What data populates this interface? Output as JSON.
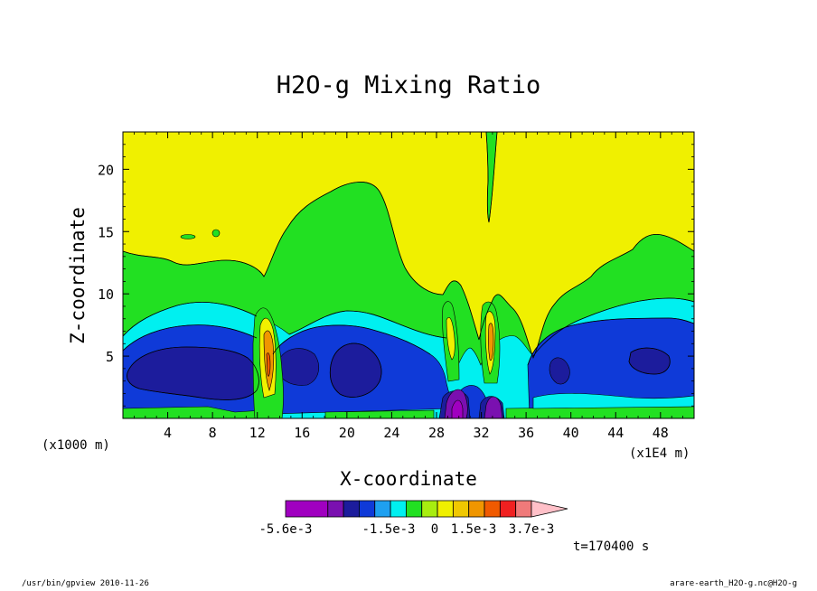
{
  "chart_data": {
    "type": "heatmap",
    "title": "H2O-g Mixing Ratio",
    "xlabel": "X-coordinate",
    "ylabel": "Z-coordinate",
    "x_unit_left": "(x1000 m)",
    "x_unit_right": "(x1E4 m)",
    "x_ticks": [
      "4",
      "8",
      "12",
      "16",
      "20",
      "24",
      "28",
      "32",
      "36",
      "40",
      "44",
      "48"
    ],
    "y_ticks": [
      "5",
      "10",
      "15",
      "20"
    ],
    "xlim": [
      0,
      51
    ],
    "ylim": [
      0,
      23
    ],
    "time_label": "t=170400 s",
    "colorbar": {
      "labels": [
        "-5.6e-3",
        "-1.5e-3",
        "0",
        "1.5e-3",
        "3.7e-3"
      ],
      "colors": [
        "#a000c0",
        "#7a10b0",
        "#1c1c9c",
        "#0f3ad8",
        "#1ea0f0",
        "#00f0f0",
        "#22e022",
        "#a8ee10",
        "#f0f000",
        "#f0c800",
        "#f09600",
        "#f05a00",
        "#f02020",
        "#f07a7a",
        "#ffc0c8"
      ]
    },
    "fields": {
      "background": "#22e022",
      "upper_layer": "#f0f000",
      "cyan": "#00f0f0",
      "blue": "#0f3ad8",
      "dark_blue": "#1c1c9c",
      "purple": "#7a10b0",
      "magenta": "#a000c0"
    }
  },
  "footer": {
    "left": "/usr/bin/gpview  2010-11-26",
    "right": "arare-earth_H2O-g.nc@H2O-g"
  }
}
